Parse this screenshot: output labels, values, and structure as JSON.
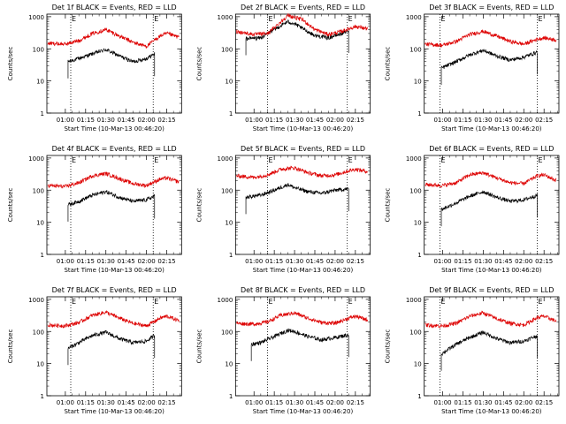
{
  "ylabel": "Counts/sec",
  "xlabel": "Start Time (10-Mar-13 00:46:20)",
  "x_tick_labels": [
    "01:00",
    "01:15",
    "01:30",
    "01:45",
    "02:00",
    "02:15"
  ],
  "y_tick_labels": [
    "1",
    "10",
    "100",
    "1000"
  ],
  "marker_label": "E",
  "colors": {
    "events": "#000000",
    "lld": "#dd0000"
  },
  "chart_data": [
    {
      "type": "line",
      "title": "Det 1f BLACK = Events, RED = LLD",
      "xlim": [
        "00:46:20",
        "02:26:00"
      ],
      "ylim": [
        1,
        1200
      ],
      "ylog": true,
      "markers": [
        "01:04:00",
        "02:05:00"
      ],
      "start": "01:02:00",
      "end": "02:06:00",
      "series": [
        {
          "name": "Events",
          "x": [
            "01:02",
            "01:10",
            "01:20",
            "01:30",
            "01:40",
            "01:50",
            "02:00",
            "02:06"
          ],
          "values": [
            40,
            50,
            70,
            95,
            60,
            40,
            50,
            70
          ]
        },
        {
          "name": "LLD",
          "x": [
            "00:47",
            "01:00",
            "01:10",
            "01:20",
            "01:30",
            "01:40",
            "01:50",
            "02:00",
            "02:10",
            "02:15",
            "02:24"
          ],
          "values": [
            150,
            140,
            180,
            300,
            400,
            250,
            160,
            120,
            250,
            300,
            230
          ]
        }
      ]
    },
    {
      "type": "line",
      "title": "Det 2f BLACK = Events, RED = LLD",
      "xlim": [
        "00:46:20",
        "02:26:00"
      ],
      "ylim": [
        1,
        1200
      ],
      "ylog": true,
      "markers": [
        "01:10:00",
        "02:09:00"
      ],
      "start": "00:54:00",
      "end": "02:10:00",
      "series": [
        {
          "name": "Events",
          "x": [
            "00:54",
            "01:05",
            "01:15",
            "01:25",
            "01:30",
            "01:35",
            "01:45",
            "01:55",
            "02:05",
            "02:10"
          ],
          "values": [
            210,
            220,
            400,
            700,
            600,
            450,
            260,
            220,
            300,
            370
          ]
        },
        {
          "name": "LLD",
          "x": [
            "00:47",
            "01:00",
            "01:10",
            "01:20",
            "01:25",
            "01:32",
            "01:36",
            "01:45",
            "01:55",
            "02:05",
            "02:15",
            "02:24"
          ],
          "values": [
            350,
            280,
            300,
            700,
            1100,
            900,
            800,
            400,
            280,
            350,
            500,
            420
          ]
        }
      ]
    },
    {
      "type": "line",
      "title": "Det 3f BLACK = Events, RED = LLD",
      "xlim": [
        "00:46:20",
        "02:26:00"
      ],
      "ylim": [
        1,
        1200
      ],
      "ylog": true,
      "markers": [
        "00:58:00",
        "02:10:00"
      ],
      "start": "00:59:00",
      "end": "02:10:00",
      "series": [
        {
          "name": "Events",
          "x": [
            "00:59",
            "01:10",
            "01:20",
            "01:30",
            "01:40",
            "01:50",
            "02:00",
            "02:10"
          ],
          "values": [
            25,
            40,
            65,
            90,
            60,
            45,
            55,
            80
          ]
        },
        {
          "name": "LLD",
          "x": [
            "00:47",
            "01:00",
            "01:10",
            "01:20",
            "01:30",
            "01:40",
            "01:50",
            "02:00",
            "02:10",
            "02:15",
            "02:24"
          ],
          "values": [
            140,
            130,
            170,
            280,
            350,
            250,
            170,
            140,
            200,
            220,
            190
          ]
        }
      ]
    },
    {
      "type": "line",
      "title": "Det 4f BLACK = Events, RED = LLD",
      "xlim": [
        "00:46:20",
        "02:26:00"
      ],
      "ylim": [
        1,
        1200
      ],
      "ylog": true,
      "markers": [
        "01:04:00",
        "02:05:00"
      ],
      "start": "01:02:00",
      "end": "02:06:00",
      "series": [
        {
          "name": "Events",
          "x": [
            "01:02",
            "01:10",
            "01:20",
            "01:30",
            "01:40",
            "01:50",
            "02:00",
            "02:06"
          ],
          "values": [
            35,
            45,
            70,
            90,
            60,
            45,
            50,
            65
          ]
        },
        {
          "name": "LLD",
          "x": [
            "00:47",
            "01:00",
            "01:10",
            "01:20",
            "01:30",
            "01:40",
            "01:50",
            "02:00",
            "02:10",
            "02:15",
            "02:24"
          ],
          "values": [
            140,
            130,
            170,
            280,
            330,
            230,
            160,
            140,
            220,
            240,
            180
          ]
        }
      ]
    },
    {
      "type": "line",
      "title": "Det 5f BLACK = Events, RED = LLD",
      "xlim": [
        "00:46:20",
        "02:26:00"
      ],
      "ylim": [
        1,
        1200
      ],
      "ylog": true,
      "markers": [
        "01:10:00",
        "02:09:00"
      ],
      "start": "00:54:00",
      "end": "02:10:00",
      "series": [
        {
          "name": "Events",
          "x": [
            "00:54",
            "01:05",
            "01:15",
            "01:25",
            "01:30",
            "01:40",
            "01:50",
            "02:00",
            "02:10"
          ],
          "values": [
            60,
            70,
            100,
            150,
            120,
            90,
            80,
            100,
            110
          ]
        },
        {
          "name": "LLD",
          "x": [
            "00:47",
            "01:00",
            "01:10",
            "01:20",
            "01:30",
            "01:40",
            "01:50",
            "02:00",
            "02:10",
            "02:15",
            "02:24"
          ],
          "values": [
            280,
            250,
            300,
            450,
            500,
            350,
            280,
            300,
            400,
            450,
            380
          ]
        }
      ]
    },
    {
      "type": "line",
      "title": "Det 6f BLACK = Events, RED = LLD",
      "xlim": [
        "00:46:20",
        "02:26:00"
      ],
      "ylim": [
        1,
        1200
      ],
      "ylog": true,
      "markers": [
        "00:58:00",
        "02:10:00"
      ],
      "start": "00:59:00",
      "end": "02:10:00",
      "series": [
        {
          "name": "Events",
          "x": [
            "00:59",
            "01:10",
            "01:20",
            "01:30",
            "01:40",
            "01:50",
            "02:00",
            "02:10"
          ],
          "values": [
            25,
            40,
            65,
            90,
            60,
            45,
            50,
            70
          ]
        },
        {
          "name": "LLD",
          "x": [
            "00:47",
            "01:00",
            "01:10",
            "01:20",
            "01:30",
            "01:40",
            "01:50",
            "02:00",
            "02:10",
            "02:15",
            "02:24"
          ],
          "values": [
            150,
            140,
            170,
            300,
            350,
            240,
            170,
            160,
            280,
            300,
            200
          ]
        }
      ]
    },
    {
      "type": "line",
      "title": "Det 7f BLACK = Events, RED = LLD",
      "xlim": [
        "00:46:20",
        "02:26:00"
      ],
      "ylim": [
        1,
        1200
      ],
      "ylog": true,
      "markers": [
        "01:04:00",
        "02:05:00"
      ],
      "start": "01:02:00",
      "end": "02:06:00",
      "series": [
        {
          "name": "Events",
          "x": [
            "01:02",
            "01:10",
            "01:20",
            "01:30",
            "01:40",
            "01:50",
            "02:00",
            "02:06"
          ],
          "values": [
            30,
            45,
            75,
            95,
            60,
            45,
            50,
            75
          ]
        },
        {
          "name": "LLD",
          "x": [
            "00:47",
            "01:00",
            "01:10",
            "01:20",
            "01:30",
            "01:40",
            "01:50",
            "02:00",
            "02:10",
            "02:15",
            "02:24"
          ],
          "values": [
            160,
            150,
            190,
            320,
            400,
            260,
            180,
            150,
            260,
            300,
            220
          ]
        }
      ]
    },
    {
      "type": "line",
      "title": "Det 8f BLACK = Events, RED = LLD",
      "xlim": [
        "00:46:20",
        "02:26:00"
      ],
      "ylim": [
        1,
        1200
      ],
      "ylog": true,
      "markers": [
        "01:10:00",
        "02:09:00"
      ],
      "start": "00:58:00",
      "end": "02:10:00",
      "series": [
        {
          "name": "Events",
          "x": [
            "00:58",
            "01:05",
            "01:15",
            "01:25",
            "01:30",
            "01:40",
            "01:50",
            "02:00",
            "02:10"
          ],
          "values": [
            40,
            45,
            70,
            110,
            100,
            70,
            55,
            65,
            80
          ]
        },
        {
          "name": "LLD",
          "x": [
            "00:47",
            "01:00",
            "01:10",
            "01:20",
            "01:30",
            "01:40",
            "01:50",
            "02:00",
            "02:10",
            "02:15",
            "02:24"
          ],
          "values": [
            180,
            170,
            200,
            320,
            380,
            260,
            190,
            180,
            260,
            300,
            230
          ]
        }
      ]
    },
    {
      "type": "line",
      "title": "Det 9f BLACK = Events, RED = LLD",
      "xlim": [
        "00:46:20",
        "02:26:00"
      ],
      "ylim": [
        1,
        1200
      ],
      "ylog": true,
      "markers": [
        "00:58:00",
        "02:10:00"
      ],
      "start": "00:59:00",
      "end": "02:10:00",
      "series": [
        {
          "name": "Events",
          "x": [
            "00:59",
            "01:10",
            "01:20",
            "01:30",
            "01:40",
            "01:50",
            "02:00",
            "02:10"
          ],
          "values": [
            20,
            40,
            65,
            95,
            60,
            45,
            50,
            75
          ]
        },
        {
          "name": "LLD",
          "x": [
            "00:47",
            "01:00",
            "01:10",
            "01:20",
            "01:30",
            "01:40",
            "01:50",
            "02:00",
            "02:10",
            "02:15",
            "02:24"
          ],
          "values": [
            160,
            150,
            180,
            300,
            380,
            250,
            180,
            160,
            270,
            300,
            210
          ]
        }
      ]
    }
  ]
}
